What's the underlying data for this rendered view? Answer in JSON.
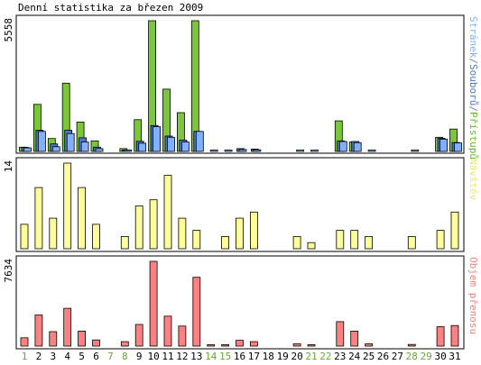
{
  "title": "Denní statistika za březen 2009",
  "chart_data": [
    {
      "type": "bar",
      "panel": "top",
      "y_max_label": "5558",
      "ylim": [
        0,
        5558
      ],
      "legend_parts": [
        {
          "text": "Stránek",
          "color": "#80b0ff"
        },
        {
          "text": "/",
          "color": "#808080"
        },
        {
          "text": "Souborů",
          "color": "#4f76c6"
        },
        {
          "text": "/",
          "color": "#808080"
        },
        {
          "text": "Přístupů",
          "color": "#66b82e"
        }
      ],
      "categories": [
        1,
        2,
        3,
        4,
        5,
        6,
        7,
        8,
        9,
        10,
        11,
        12,
        13,
        14,
        15,
        16,
        17,
        18,
        19,
        20,
        21,
        22,
        23,
        24,
        25,
        26,
        27,
        28,
        29,
        30,
        31
      ],
      "series": [
        {
          "name": "Přístupů",
          "color": "#7cc63c",
          "values": [
            180,
            2000,
            550,
            2900,
            1250,
            450,
            0,
            120,
            1350,
            5558,
            2650,
            1650,
            5558,
            0,
            0,
            0,
            0,
            0,
            0,
            0,
            0,
            0,
            1300,
            400,
            0,
            0,
            0,
            0,
            0,
            600,
            950
          ]
        },
        {
          "name": "Souborů",
          "color": "#4f76c6",
          "values": [
            170,
            900,
            320,
            900,
            580,
            180,
            0,
            60,
            430,
            1100,
            650,
            480,
            850,
            0,
            0,
            120,
            100,
            0,
            0,
            0,
            0,
            0,
            450,
            420,
            0,
            0,
            0,
            0,
            0,
            560,
            380
          ]
        },
        {
          "name": "Stránek",
          "color": "#80b0ff",
          "values": [
            150,
            850,
            200,
            760,
            400,
            120,
            0,
            50,
            350,
            1050,
            600,
            400,
            850,
            30,
            30,
            80,
            70,
            0,
            0,
            30,
            30,
            0,
            420,
            370,
            30,
            0,
            0,
            30,
            0,
            520,
            360
          ]
        }
      ]
    },
    {
      "type": "bar",
      "panel": "middle",
      "y_max_label": "14",
      "ylim": [
        0,
        14
      ],
      "legend_parts": [
        {
          "text": "Návštěv",
          "color": "#e8e870"
        }
      ],
      "categories": [
        1,
        2,
        3,
        4,
        5,
        6,
        7,
        8,
        9,
        10,
        11,
        12,
        13,
        14,
        15,
        16,
        17,
        18,
        19,
        20,
        21,
        22,
        23,
        24,
        25,
        26,
        27,
        28,
        29,
        30,
        31
      ],
      "series": [
        {
          "name": "Návštěv",
          "color": "#ffff99",
          "values": [
            4,
            10,
            5,
            14,
            10,
            4,
            0,
            2,
            7,
            8,
            12,
            5,
            3,
            0,
            2,
            5,
            6,
            0,
            0,
            2,
            1,
            0,
            3,
            3,
            2,
            0,
            0,
            2,
            0,
            3,
            6
          ]
        }
      ]
    },
    {
      "type": "bar",
      "panel": "bottom",
      "y_max_label": "7634",
      "ylim": [
        0,
        7634
      ],
      "legend_parts": [
        {
          "text": "Objem přenosu",
          "color": "#f08080"
        }
      ],
      "categories": [
        1,
        2,
        3,
        4,
        5,
        6,
        7,
        8,
        9,
        10,
        11,
        12,
        13,
        14,
        15,
        16,
        17,
        18,
        19,
        20,
        21,
        22,
        23,
        24,
        25,
        26,
        27,
        28,
        29,
        30,
        31
      ],
      "series": [
        {
          "name": "Objem přenosu",
          "color": "#ff8080",
          "values": [
            750,
            2800,
            1300,
            3400,
            1350,
            550,
            0,
            400,
            1950,
            7634,
            2700,
            1800,
            6200,
            20,
            20,
            520,
            400,
            0,
            0,
            200,
            120,
            0,
            2200,
            1350,
            200,
            0,
            0,
            150,
            0,
            1750,
            1850
          ]
        }
      ]
    }
  ],
  "x_axis": {
    "labels": [
      "1",
      "2",
      "3",
      "4",
      "5",
      "6",
      "7",
      "8",
      "9",
      "10",
      "11",
      "12",
      "13",
      "14",
      "15",
      "16",
      "17",
      "18",
      "19",
      "20",
      "21",
      "22",
      "23",
      "24",
      "25",
      "26",
      "27",
      "28",
      "29",
      "30",
      "31"
    ],
    "weekend_days": [
      "1",
      "7",
      "8",
      "14",
      "15",
      "21",
      "22",
      "28",
      "29"
    ],
    "weekday_color": "#000000",
    "weekend_color": "#66a833"
  }
}
